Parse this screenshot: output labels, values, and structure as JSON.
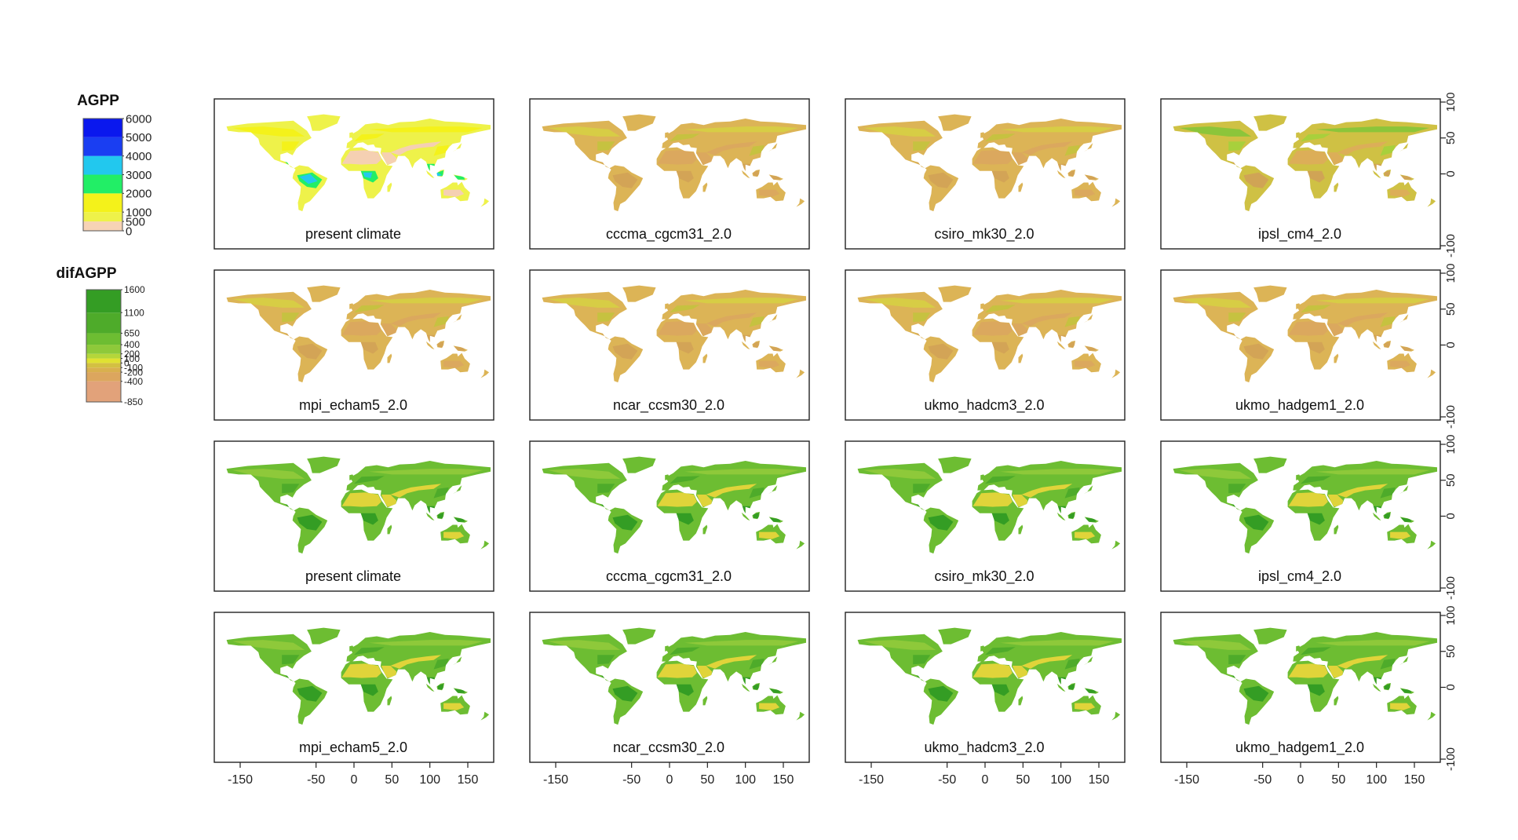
{
  "chart_data": {
    "type": "heatmap",
    "layout": "4x4 panel grid of world maps",
    "legends": [
      {
        "title": "AGPP",
        "breaks": [
          0,
          500,
          1000,
          2000,
          3000,
          4000,
          5000,
          6000
        ],
        "tick_labels": [
          "6000",
          "5000",
          "4000",
          "3000",
          "2000",
          "1000",
          "500",
          "0"
        ],
        "colors": [
          "#f7d3b5",
          "#eef24a",
          "#f4f21a",
          "#22ee66",
          "#22c8ee",
          "#1a3ef2",
          "#0a18ee",
          "#4b18ee"
        ]
      },
      {
        "title": "difAGPP",
        "breaks": [
          -850,
          -400,
          -200,
          -100,
          0,
          100,
          200,
          400,
          650,
          1100,
          1600
        ],
        "tick_labels": [
          "1600",
          "1100",
          "650",
          "400",
          "200",
          "100",
          "0",
          "-100",
          "-200",
          "-400",
          "-850"
        ],
        "colors": [
          "#e2a27a",
          "#dca65e",
          "#d9b04e",
          "#d3c042",
          "#e0e132",
          "#b4d63a",
          "#8ec93a",
          "#6dbd32",
          "#4eab2a",
          "#349d24",
          "#228e20"
        ]
      }
    ],
    "x_axis": {
      "ticks": [
        -150,
        -50,
        0,
        50,
        100,
        150
      ],
      "xlim": [
        -180,
        180
      ]
    },
    "y_axis": {
      "ticks": [
        -100,
        0,
        50,
        100
      ],
      "ylim": [
        -100,
        100
      ]
    },
    "panels": [
      {
        "label": "present climate",
        "row": 1,
        "scheme": "agpp"
      },
      {
        "label": "cccma_cgcm31_2.0",
        "row": 1,
        "scheme": "dif_low"
      },
      {
        "label": "csiro_mk30_2.0",
        "row": 1,
        "scheme": "dif_low"
      },
      {
        "label": "ipsl_cm4_2.0",
        "row": 1,
        "scheme": "dif_mid"
      },
      {
        "label": "mpi_echam5_2.0",
        "row": 2,
        "scheme": "dif_low"
      },
      {
        "label": "ncar_ccsm30_2.0",
        "row": 2,
        "scheme": "dif_low"
      },
      {
        "label": "ukmo_hadcm3_2.0",
        "row": 2,
        "scheme": "dif_low"
      },
      {
        "label": "ukmo_hadgem1_2.0",
        "row": 2,
        "scheme": "dif_low"
      },
      {
        "label": "present climate",
        "row": 3,
        "scheme": "dif_high"
      },
      {
        "label": "cccma_cgcm31_2.0",
        "row": 3,
        "scheme": "dif_high"
      },
      {
        "label": "csiro_mk30_2.0",
        "row": 3,
        "scheme": "dif_high"
      },
      {
        "label": "ipsl_cm4_2.0",
        "row": 3,
        "scheme": "dif_high"
      },
      {
        "label": "mpi_echam5_2.0",
        "row": 4,
        "scheme": "dif_high"
      },
      {
        "label": "ncar_ccsm30_2.0",
        "row": 4,
        "scheme": "dif_high"
      },
      {
        "label": "ukmo_hadcm3_2.0",
        "row": 4,
        "scheme": "dif_high"
      },
      {
        "label": "ukmo_hadgem1_2.0",
        "row": 4,
        "scheme": "dif_high"
      }
    ]
  }
}
